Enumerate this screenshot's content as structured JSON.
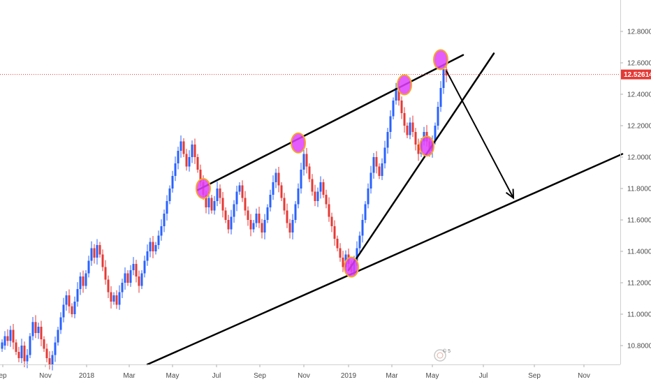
{
  "chart_data": {
    "type": "candlestick",
    "y_axis_ticks": [
      "12.80000",
      "12.60000",
      "12.40000",
      "12.20000",
      "12.00000",
      "11.80000",
      "11.60000",
      "11.40000",
      "11.20000",
      "11.00000",
      "10.80000"
    ],
    "x_axis_ticks": [
      "ep",
      "Nov",
      "2018",
      "Mar",
      "May",
      "Jul",
      "Sep",
      "Nov",
      "2019",
      "Mar",
      "May",
      "Jul",
      "Sep",
      "Nov"
    ],
    "ylim": [
      10.68,
      13.0
    ],
    "last_price": 12.52614,
    "last_price_label": "12.52614",
    "colors": {
      "up": "#2962ff",
      "down": "#e53935",
      "price_line": "#e53935",
      "highlight": "#e040fb",
      "highlight_border": "#f5a623",
      "trendline": "#000000"
    },
    "candles": [
      [
        10.78,
        10.82
      ],
      [
        10.8,
        10.86
      ],
      [
        10.86,
        10.83
      ],
      [
        10.83,
        10.9
      ],
      [
        10.9,
        10.82
      ],
      [
        10.82,
        10.76
      ],
      [
        10.76,
        10.72
      ],
      [
        10.72,
        10.8
      ],
      [
        10.8,
        10.7
      ],
      [
        10.7,
        10.74
      ],
      [
        10.74,
        10.86
      ],
      [
        10.86,
        10.95
      ],
      [
        10.95,
        10.88
      ],
      [
        10.88,
        10.92
      ],
      [
        10.92,
        10.84
      ],
      [
        10.84,
        10.78
      ],
      [
        10.78,
        10.72
      ],
      [
        10.72,
        10.68
      ],
      [
        10.68,
        10.74
      ],
      [
        10.74,
        10.82
      ],
      [
        10.82,
        10.9
      ],
      [
        10.9,
        10.98
      ],
      [
        10.98,
        11.06
      ],
      [
        11.06,
        11.12
      ],
      [
        11.12,
        11.05
      ],
      [
        11.05,
        11.0
      ],
      [
        11.0,
        11.08
      ],
      [
        11.08,
        11.16
      ],
      [
        11.16,
        11.24
      ],
      [
        11.24,
        11.18
      ],
      [
        11.18,
        11.26
      ],
      [
        11.26,
        11.34
      ],
      [
        11.34,
        11.42
      ],
      [
        11.42,
        11.36
      ],
      [
        11.36,
        11.44
      ],
      [
        11.44,
        11.38
      ],
      [
        11.38,
        11.3
      ],
      [
        11.3,
        11.22
      ],
      [
        11.22,
        11.14
      ],
      [
        11.14,
        11.08
      ],
      [
        11.08,
        11.12
      ],
      [
        11.12,
        11.06
      ],
      [
        11.06,
        11.14
      ],
      [
        11.14,
        11.2
      ],
      [
        11.2,
        11.26
      ],
      [
        11.26,
        11.2
      ],
      [
        11.2,
        11.28
      ],
      [
        11.28,
        11.32
      ],
      [
        11.32,
        11.24
      ],
      [
        11.24,
        11.18
      ],
      [
        11.18,
        11.26
      ],
      [
        11.26,
        11.34
      ],
      [
        11.34,
        11.4
      ],
      [
        11.4,
        11.46
      ],
      [
        11.46,
        11.4
      ],
      [
        11.4,
        11.44
      ],
      [
        11.44,
        11.5
      ],
      [
        11.5,
        11.56
      ],
      [
        11.56,
        11.64
      ],
      [
        11.64,
        11.72
      ],
      [
        11.72,
        11.8
      ],
      [
        11.8,
        11.88
      ],
      [
        11.88,
        11.96
      ],
      [
        11.96,
        12.04
      ],
      [
        12.04,
        12.1
      ],
      [
        12.1,
        12.02
      ],
      [
        12.02,
        11.94
      ],
      [
        11.94,
        12.0
      ],
      [
        12.0,
        12.08
      ],
      [
        12.08,
        12.0
      ],
      [
        12.0,
        11.92
      ],
      [
        11.92,
        11.84
      ],
      [
        11.84,
        11.76
      ],
      [
        11.76,
        11.68
      ],
      [
        11.68,
        11.74
      ],
      [
        11.74,
        11.66
      ],
      [
        11.66,
        11.72
      ],
      [
        11.72,
        11.8
      ],
      [
        11.8,
        11.74
      ],
      [
        11.74,
        11.66
      ],
      [
        11.66,
        11.6
      ],
      [
        11.6,
        11.54
      ],
      [
        11.54,
        11.62
      ],
      [
        11.62,
        11.7
      ],
      [
        11.7,
        11.78
      ],
      [
        11.78,
        11.82
      ],
      [
        11.82,
        11.74
      ],
      [
        11.74,
        11.66
      ],
      [
        11.66,
        11.6
      ],
      [
        11.6,
        11.54
      ],
      [
        11.54,
        11.58
      ],
      [
        11.58,
        11.64
      ],
      [
        11.64,
        11.58
      ],
      [
        11.58,
        11.52
      ],
      [
        11.52,
        11.6
      ],
      [
        11.6,
        11.68
      ],
      [
        11.68,
        11.76
      ],
      [
        11.76,
        11.84
      ],
      [
        11.84,
        11.9
      ],
      [
        11.9,
        11.82
      ],
      [
        11.82,
        11.74
      ],
      [
        11.74,
        11.66
      ],
      [
        11.66,
        11.58
      ],
      [
        11.58,
        11.52
      ],
      [
        11.52,
        11.6
      ],
      [
        11.6,
        11.7
      ],
      [
        11.7,
        11.8
      ],
      [
        11.8,
        11.92
      ],
      [
        11.92,
        12.02
      ],
      [
        12.02,
        11.94
      ],
      [
        11.94,
        11.86
      ],
      [
        11.86,
        11.78
      ],
      [
        11.78,
        11.72
      ],
      [
        11.72,
        11.78
      ],
      [
        11.78,
        11.84
      ],
      [
        11.84,
        11.76
      ],
      [
        11.76,
        11.7
      ],
      [
        11.7,
        11.62
      ],
      [
        11.62,
        11.56
      ],
      [
        11.56,
        11.48
      ],
      [
        11.48,
        11.42
      ],
      [
        11.42,
        11.36
      ],
      [
        11.36,
        11.3
      ],
      [
        11.3,
        11.38
      ],
      [
        11.38,
        11.32
      ],
      [
        11.32,
        11.27
      ],
      [
        11.27,
        11.34
      ],
      [
        11.34,
        11.42
      ],
      [
        11.42,
        11.5
      ],
      [
        11.5,
        11.6
      ],
      [
        11.6,
        11.7
      ],
      [
        11.7,
        11.8
      ],
      [
        11.8,
        11.9
      ],
      [
        11.9,
        12.0
      ],
      [
        12.0,
        11.94
      ],
      [
        11.94,
        11.88
      ],
      [
        11.88,
        11.96
      ],
      [
        11.96,
        12.06
      ],
      [
        12.06,
        12.16
      ],
      [
        12.16,
        12.26
      ],
      [
        12.26,
        12.36
      ],
      [
        12.36,
        12.44
      ],
      [
        12.44,
        12.36
      ],
      [
        12.36,
        12.28
      ],
      [
        12.28,
        12.2
      ],
      [
        12.2,
        12.14
      ],
      [
        12.14,
        12.22
      ],
      [
        12.22,
        12.16
      ],
      [
        12.16,
        12.08
      ],
      [
        12.08,
        12.02
      ],
      [
        12.02,
        12.1
      ],
      [
        12.1,
        12.16
      ],
      [
        12.16,
        12.1
      ],
      [
        12.1,
        12.04
      ],
      [
        12.04,
        12.1
      ],
      [
        12.1,
        12.2
      ],
      [
        12.2,
        12.32
      ],
      [
        12.32,
        12.44
      ],
      [
        12.44,
        12.56
      ],
      [
        12.56,
        12.52
      ]
    ],
    "highlight_points": [
      {
        "index": 72,
        "price": 11.8
      },
      {
        "index": 106,
        "price": 12.09
      },
      {
        "index": 125,
        "price": 11.3
      },
      {
        "index": 144,
        "price": 12.46
      },
      {
        "index": 152,
        "price": 12.07
      },
      {
        "index": 157,
        "price": 12.62
      }
    ],
    "annotations": [
      {
        "kind": "line",
        "from": {
          "index": 70,
          "price": 11.79
        },
        "to": {
          "index": 165,
          "price": 12.65
        }
      },
      {
        "kind": "line",
        "from": {
          "index": 52,
          "price": 10.68
        },
        "to": {
          "index": 222,
          "price": 12.02
        }
      },
      {
        "kind": "line",
        "from": {
          "index": 124,
          "price": 11.28
        },
        "to": {
          "index": 176,
          "price": 12.66
        }
      },
      {
        "kind": "arrow",
        "from": {
          "index": 159,
          "price": 12.55
        },
        "to": {
          "index": 183,
          "price": 11.74
        }
      }
    ]
  },
  "logo": {
    "text": "© 5"
  }
}
